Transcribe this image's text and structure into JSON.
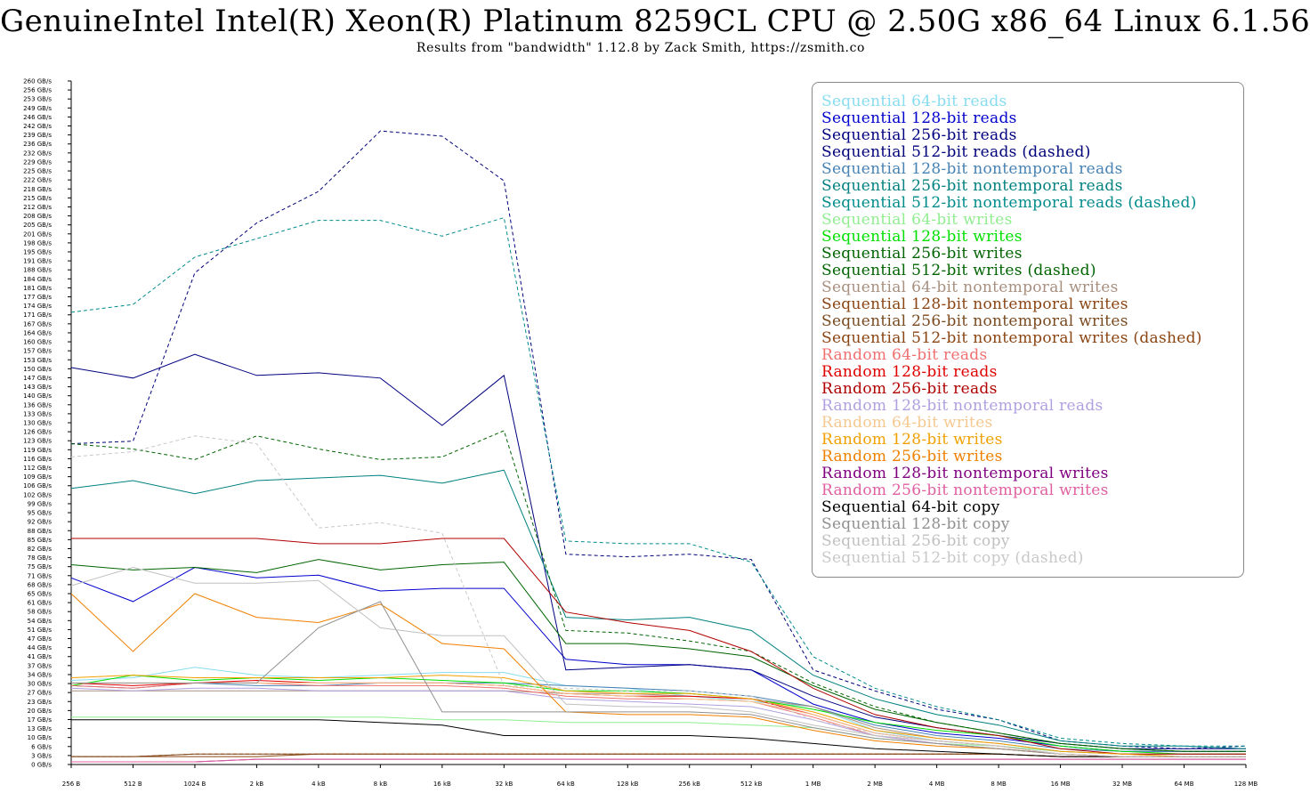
{
  "title": "GenuineIntel Intel(R) Xeon(R) Platinum 8259CL CPU @ 2.50G x86_64 Linux 6.1.56",
  "subtitle": "Results from \"bandwidth\" 1.12.8 by Zack Smith, https://zsmith.co",
  "chart_data": {
    "type": "line",
    "title": "GenuineIntel Intel(R) Xeon(R) Platinum 8259CL CPU @ 2.50G x86_64 Linux 6.1.56",
    "subtitle": "Results from \"bandwidth\" 1.12.8 by Zack Smith, https://zsmith.co",
    "xlabel": "",
    "ylabel": "",
    "x_scale": "log2",
    "x_tick_labels": [
      "256 B",
      "512 B",
      "1024 B",
      "2 kB",
      "4 kB",
      "8 kB",
      "16 kB",
      "32 kB",
      "64 kB",
      "128 kB",
      "256 kB",
      "512 kB",
      "1 MB",
      "2 MB",
      "4 MB",
      "8 MB",
      "16 MB",
      "32 MB",
      "64 MB",
      "128 MB"
    ],
    "y_tick_labels": [
      "0 GB/s",
      "3 GB/s",
      "6 GB/s",
      "10 GB/s",
      "13 GB/s",
      "17 GB/s",
      "20 GB/s",
      "23 GB/s",
      "27 GB/s",
      "30 GB/s",
      "34 GB/s",
      "37 GB/s",
      "41 GB/s",
      "44 GB/s",
      "47 GB/s",
      "51 GB/s",
      "54 GB/s",
      "58 GB/s",
      "61 GB/s",
      "65 GB/s",
      "68 GB/s",
      "71 GB/s",
      "75 GB/s",
      "78 GB/s",
      "82 GB/s",
      "85 GB/s",
      "88 GB/s",
      "92 GB/s",
      "95 GB/s",
      "99 GB/s",
      "102 GB/s",
      "106 GB/s",
      "109 GB/s",
      "112 GB/s",
      "116 GB/s",
      "119 GB/s",
      "123 GB/s",
      "126 GB/s",
      "130 GB/s",
      "133 GB/s",
      "136 GB/s",
      "140 GB/s",
      "143 GB/s",
      "147 GB/s",
      "150 GB/s",
      "153 GB/s",
      "157 GB/s",
      "160 GB/s",
      "164 GB/s",
      "167 GB/s",
      "171 GB/s",
      "174 GB/s",
      "177 GB/s",
      "181 GB/s",
      "184 GB/s",
      "188 GB/s",
      "191 GB/s",
      "195 GB/s",
      "198 GB/s",
      "201 GB/s",
      "205 GB/s",
      "208 GB/s",
      "212 GB/s",
      "215 GB/s",
      "218 GB/s",
      "222 GB/s",
      "225 GB/s",
      "229 GB/s",
      "232 GB/s",
      "236 GB/s",
      "239 GB/s",
      "242 GB/s",
      "246 GB/s",
      "249 GB/s",
      "253 GB/s",
      "256 GB/s",
      "260 GB/s"
    ],
    "ylim": [
      0,
      260
    ],
    "x": [
      "256 B",
      "512 B",
      "1024 B",
      "2 kB",
      "4 kB",
      "8 kB",
      "16 kB",
      "32 kB",
      "64 kB",
      "128 kB",
      "256 kB",
      "512 kB",
      "1 MB",
      "2 MB",
      "4 MB",
      "8 MB",
      "16 MB",
      "32 MB",
      "64 MB",
      "128 MB"
    ],
    "legend_position": "top-right",
    "grid": false,
    "series": [
      {
        "name": "Sequential 64-bit reads",
        "color": "#87dcef",
        "dashed": false,
        "values": [
          32,
          33,
          37,
          34,
          33,
          34,
          35,
          35,
          30,
          29,
          26,
          24,
          22,
          13,
          9,
          7,
          5,
          4,
          4,
          4
        ]
      },
      {
        "name": "Sequential 128-bit reads",
        "color": "#0000cc",
        "dashed": false,
        "values": [
          71,
          62,
          75,
          71,
          72,
          66,
          67,
          67,
          40,
          38,
          38,
          36,
          23,
          16,
          12,
          10,
          7,
          5,
          5,
          5
        ]
      },
      {
        "name": "Sequential 256-bit reads",
        "color": "#000080",
        "dashed": false,
        "values": [
          151,
          147,
          156,
          148,
          149,
          147,
          129,
          148,
          36,
          37,
          38,
          36,
          26,
          18,
          14,
          11,
          8,
          6,
          6,
          6
        ]
      },
      {
        "name": "Sequential 512-bit reads (dashed)",
        "color": "#00007a",
        "dashed": true,
        "values": [
          122,
          123,
          187,
          206,
          218,
          241,
          239,
          222,
          80,
          79,
          80,
          78,
          36,
          28,
          21,
          17,
          9,
          7,
          6,
          7
        ]
      },
      {
        "name": "Sequential 128-bit nontemporal reads",
        "color": "#4682b4",
        "dashed": false,
        "values": [
          30,
          29,
          31,
          30,
          30,
          31,
          31,
          31,
          30,
          29,
          28,
          26,
          22,
          15,
          11,
          9,
          6,
          5,
          5,
          5
        ]
      },
      {
        "name": "Sequential 256-bit nontemporal reads",
        "color": "#008080",
        "dashed": false,
        "values": [
          105,
          108,
          103,
          108,
          109,
          110,
          107,
          112,
          56,
          55,
          56,
          51,
          34,
          25,
          19,
          15,
          9,
          7,
          7,
          6
        ]
      },
      {
        "name": "Sequential 512-bit nontemporal reads (dashed)",
        "color": "#008b8b",
        "dashed": true,
        "values": [
          172,
          175,
          193,
          200,
          207,
          207,
          201,
          208,
          85,
          84,
          84,
          77,
          41,
          29,
          22,
          17,
          10,
          8,
          7,
          7
        ]
      },
      {
        "name": "Sequential 64-bit writes",
        "color": "#90ee90",
        "dashed": false,
        "values": [
          18,
          18,
          18,
          18,
          18,
          18,
          17,
          17,
          16,
          16,
          16,
          15,
          14,
          10,
          8,
          7,
          5,
          4,
          4,
          4
        ]
      },
      {
        "name": "Sequential 128-bit writes",
        "color": "#00e000",
        "dashed": false,
        "values": [
          30,
          34,
          32,
          33,
          32,
          33,
          32,
          31,
          28,
          28,
          27,
          25,
          21,
          16,
          13,
          11,
          7,
          5,
          4,
          4
        ]
      },
      {
        "name": "Sequential 256-bit writes",
        "color": "#006400",
        "dashed": false,
        "values": [
          76,
          74,
          75,
          73,
          78,
          74,
          76,
          77,
          46,
          46,
          44,
          41,
          30,
          21,
          16,
          12,
          8,
          6,
          5,
          5
        ]
      },
      {
        "name": "Sequential 512-bit writes (dashed)",
        "color": "#006400",
        "dashed": true,
        "values": [
          122,
          120,
          116,
          125,
          120,
          116,
          117,
          127,
          51,
          50,
          47,
          43,
          31,
          22,
          16,
          12,
          8,
          6,
          5,
          5
        ]
      },
      {
        "name": "Sequential 64-bit nontemporal writes",
        "color": "#a89080",
        "dashed": false,
        "values": [
          28,
          28,
          28,
          28,
          28,
          28,
          28,
          28,
          27,
          27,
          26,
          25,
          22,
          14,
          10,
          8,
          5,
          4,
          4,
          4
        ]
      },
      {
        "name": "Sequential 128-bit nontemporal writes",
        "color": "#8b4513",
        "dashed": false,
        "values": [
          3,
          3,
          3,
          3,
          4,
          4,
          4,
          4,
          4,
          4,
          4,
          4,
          4,
          4,
          4,
          4,
          3,
          3,
          3,
          3
        ]
      },
      {
        "name": "Sequential 256-bit nontemporal writes",
        "color": "#7a4a1f",
        "dashed": false,
        "values": [
          3,
          3,
          4,
          4,
          4,
          4,
          4,
          4,
          4,
          4,
          4,
          4,
          4,
          4,
          4,
          4,
          3,
          3,
          3,
          3
        ]
      },
      {
        "name": "Sequential 512-bit nontemporal writes (dashed)",
        "color": "#8b4513",
        "dashed": true,
        "values": [
          3,
          3,
          4,
          4,
          4,
          4,
          4,
          4,
          4,
          4,
          4,
          4,
          4,
          4,
          4,
          4,
          3,
          3,
          3,
          3
        ]
      },
      {
        "name": "Random 64-bit reads",
        "color": "#f07070",
        "dashed": false,
        "values": [
          30,
          29,
          31,
          31,
          30,
          30,
          30,
          29,
          26,
          25,
          25,
          24,
          18,
          11,
          8,
          6,
          4,
          3,
          3,
          3
        ]
      },
      {
        "name": "Random 128-bit reads",
        "color": "#e00000",
        "dashed": false,
        "values": [
          31,
          30,
          31,
          32,
          31,
          31,
          31,
          30,
          27,
          26,
          26,
          25,
          19,
          12,
          9,
          7,
          4,
          3,
          3,
          3
        ]
      },
      {
        "name": "Random 256-bit reads",
        "color": "#b00000",
        "dashed": false,
        "values": [
          86,
          86,
          86,
          86,
          84,
          84,
          86,
          86,
          58,
          54,
          51,
          43,
          29,
          19,
          14,
          11,
          6,
          4,
          4,
          4
        ]
      },
      {
        "name": "Random 128-bit nontemporal reads",
        "color": "#b0a0e0",
        "dashed": false,
        "values": [
          29,
          28,
          29,
          29,
          28,
          28,
          28,
          28,
          25,
          24,
          23,
          22,
          17,
          11,
          8,
          6,
          4,
          3,
          3,
          3
        ]
      },
      {
        "name": "Random 64-bit writes",
        "color": "#f5c890",
        "dashed": false,
        "values": [
          31,
          31,
          31,
          31,
          31,
          31,
          31,
          30,
          27,
          26,
          25,
          24,
          19,
          12,
          9,
          7,
          4,
          3,
          3,
          3
        ]
      },
      {
        "name": "Random 128-bit writes",
        "color": "#f0a000",
        "dashed": false,
        "values": [
          33,
          34,
          33,
          33,
          33,
          33,
          34,
          33,
          28,
          27,
          27,
          25,
          20,
          13,
          10,
          8,
          5,
          4,
          3,
          3
        ]
      },
      {
        "name": "Random 256-bit writes",
        "color": "#f08000",
        "dashed": false,
        "values": [
          65,
          43,
          65,
          56,
          54,
          61,
          46,
          44,
          20,
          19,
          19,
          18,
          13,
          9,
          7,
          6,
          4,
          3,
          3,
          3
        ]
      },
      {
        "name": "Random 128-bit nontemporal writes",
        "color": "#800080",
        "dashed": false,
        "values": [
          1,
          1,
          1,
          2,
          2,
          2,
          2,
          2,
          2,
          2,
          2,
          2,
          2,
          2,
          2,
          2,
          2,
          2,
          2,
          2
        ]
      },
      {
        "name": "Random 256-bit nontemporal writes",
        "color": "#e060a0",
        "dashed": false,
        "values": [
          1,
          1,
          1,
          2,
          2,
          2,
          2,
          2,
          2,
          2,
          2,
          2,
          2,
          2,
          2,
          2,
          2,
          2,
          2,
          2
        ]
      },
      {
        "name": "Sequential 64-bit copy",
        "color": "#000000",
        "dashed": false,
        "values": [
          17,
          17,
          17,
          17,
          17,
          16,
          15,
          11,
          11,
          11,
          11,
          10,
          8,
          6,
          5,
          4,
          3,
          3,
          3,
          3
        ]
      },
      {
        "name": "Sequential 128-bit copy",
        "color": "#909090",
        "dashed": false,
        "values": [
          31,
          31,
          31,
          31,
          52,
          62,
          20,
          20,
          20,
          20,
          20,
          19,
          14,
          10,
          8,
          6,
          4,
          3,
          3,
          3
        ]
      },
      {
        "name": "Sequential 256-bit copy",
        "color": "#c0c0c0",
        "dashed": false,
        "values": [
          68,
          75,
          69,
          69,
          70,
          52,
          49,
          49,
          23,
          22,
          22,
          20,
          15,
          11,
          9,
          7,
          4,
          3,
          3,
          3
        ]
      },
      {
        "name": "Sequential 512-bit copy (dashed)",
        "color": "#c8c8c8",
        "dashed": true,
        "values": [
          117,
          119,
          125,
          122,
          90,
          92,
          88,
          30,
          29,
          28,
          28,
          26,
          17,
          12,
          9,
          7,
          4,
          3,
          3,
          3
        ]
      }
    ]
  }
}
